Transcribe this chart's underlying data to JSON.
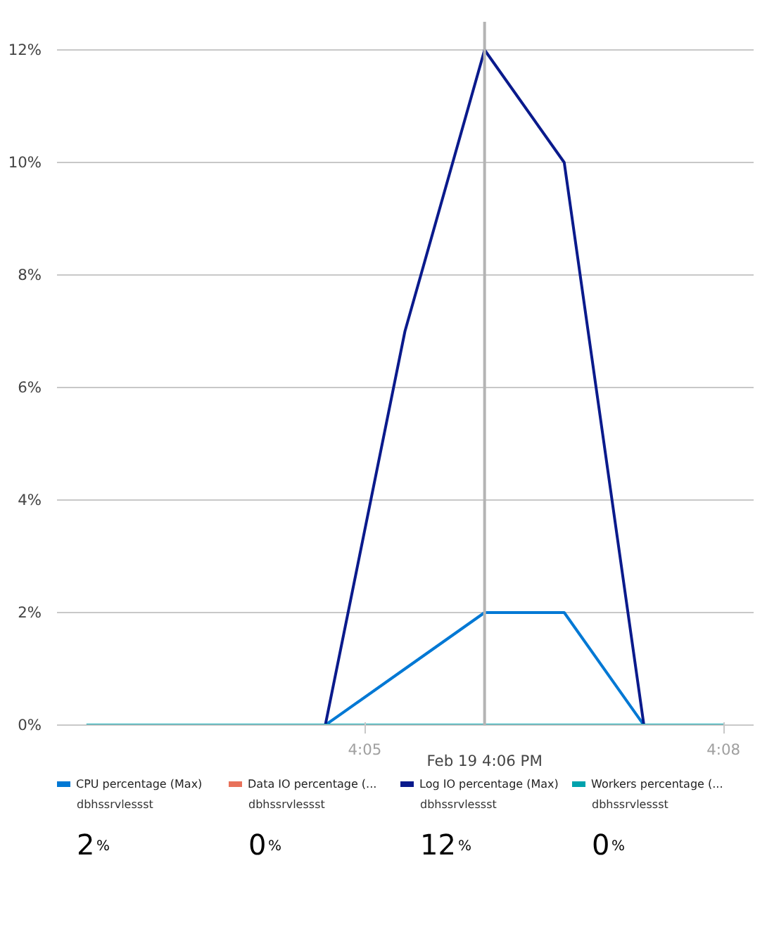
{
  "chart_data": {
    "type": "line",
    "x": [
      4.0445,
      4.0556,
      4.0667,
      4.0778,
      4.0889,
      4.1,
      4.1111,
      4.1222,
      4.1333
    ],
    "xlim": [
      4.0404,
      4.1375
    ],
    "xticks": [
      {
        "value": 4.0833,
        "label": "4:05"
      },
      {
        "value": 4.1333,
        "label": "4:08"
      }
    ],
    "ylim": [
      0,
      12.5
    ],
    "yticks": [
      {
        "value": 0,
        "label": "0%"
      },
      {
        "value": 2,
        "label": "2%"
      },
      {
        "value": 4,
        "label": "4%"
      },
      {
        "value": 6,
        "label": "6%"
      },
      {
        "value": 8,
        "label": "8%"
      },
      {
        "value": 10,
        "label": "10%"
      },
      {
        "value": 12,
        "label": "12%"
      }
    ],
    "series": [
      {
        "name": "CPU percentage (Max)",
        "color": "#0078d4",
        "values": [
          null,
          null,
          null,
          0,
          1,
          2,
          2,
          0,
          null
        ]
      },
      {
        "name": "Data IO percentage (...",
        "color": "#e8715a",
        "values": [
          null,
          null,
          null,
          null,
          null,
          null,
          null,
          null,
          null
        ]
      },
      {
        "name": "Log IO percentage (Max)",
        "color": "#0a1a8c",
        "values": [
          null,
          null,
          null,
          0,
          7,
          12,
          10,
          0,
          null
        ]
      },
      {
        "name": "Workers percentage (...",
        "color": "#00a2ad",
        "values": [
          0,
          0,
          0,
          0,
          0,
          0,
          0,
          0,
          0
        ]
      }
    ],
    "ref_lines": [
      {
        "axis": "x",
        "value": 4.1,
        "label": "Feb 19 4:06 PM",
        "color": "#b4b4b4"
      }
    ],
    "annotations": [
      "dbhssrvlessst",
      "2%",
      "dbhssrvlessst",
      "0%",
      "dbhssrvlessst",
      "12%",
      "dbhssrvlessst",
      "0%"
    ],
    "grid": "y",
    "legend": "bottom",
    "marker": "none",
    "line_style": "solid"
  }
}
